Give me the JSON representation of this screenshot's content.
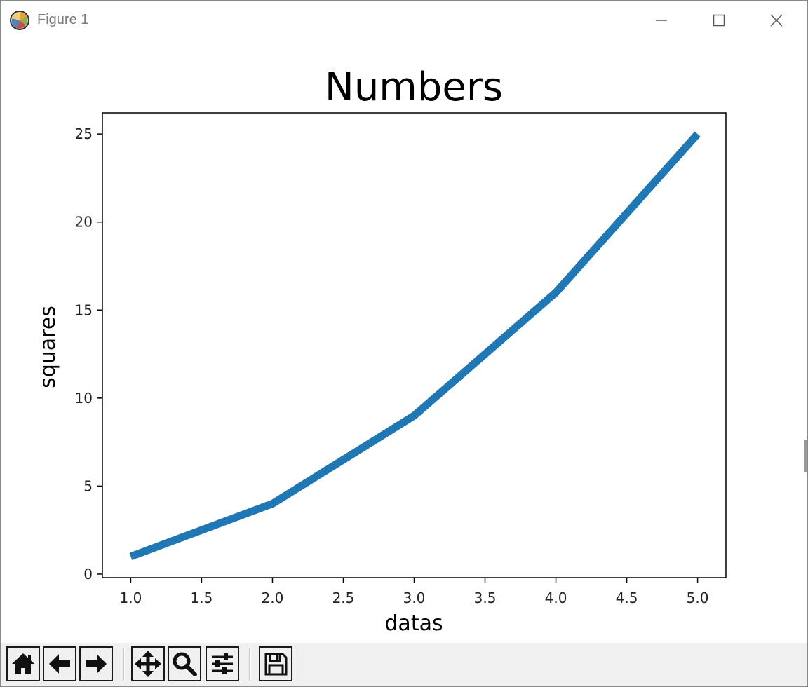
{
  "window": {
    "title": "Figure 1",
    "controls": {
      "minimize": "minimize-icon",
      "maximize": "maximize-icon",
      "close": "close-icon"
    }
  },
  "toolbar": {
    "buttons": [
      {
        "id": "home",
        "icon": "home-icon"
      },
      {
        "id": "back",
        "icon": "arrow-left-icon"
      },
      {
        "id": "forward",
        "icon": "arrow-right-icon"
      },
      {
        "id": "pan",
        "icon": "move-icon"
      },
      {
        "id": "zoom",
        "icon": "magnifier-icon"
      },
      {
        "id": "configure",
        "icon": "sliders-icon"
      },
      {
        "id": "save",
        "icon": "floppy-disk-icon"
      }
    ]
  },
  "chart_data": {
    "type": "line",
    "title": "Numbers",
    "xlabel": "datas",
    "ylabel": "squares",
    "x": [
      1,
      2,
      3,
      4,
      5
    ],
    "series": [
      {
        "values": [
          1,
          4,
          9,
          16,
          25
        ],
        "color": "#1f77b4"
      }
    ],
    "xlim": [
      0.8,
      5.2
    ],
    "ylim": [
      -0.2,
      26.2
    ],
    "xticks": [
      "1.0",
      "1.5",
      "2.0",
      "2.5",
      "3.0",
      "3.5",
      "4.0",
      "4.5",
      "5.0"
    ],
    "yticks": [
      "0",
      "5",
      "10",
      "15",
      "20",
      "25"
    ],
    "grid": false,
    "legend": "none"
  }
}
